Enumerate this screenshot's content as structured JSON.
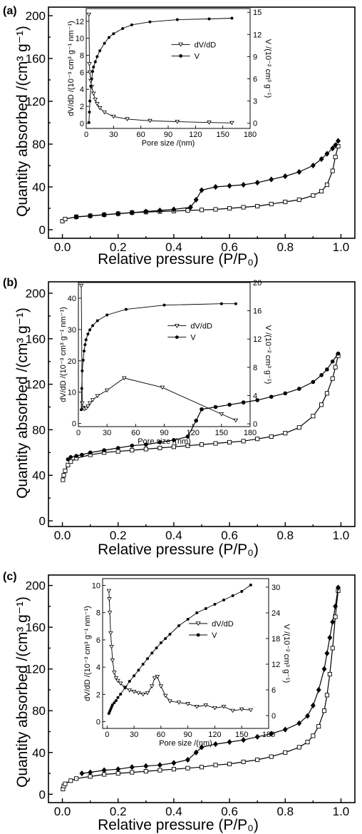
{
  "chart_data": [
    {
      "type": "line",
      "panel_label": "(a)",
      "xlabel": "Relative pressure (P/P₀)",
      "ylabel": "Quantity absorbed /(cm³ g⁻¹)",
      "xlim": [
        -0.05,
        1.05
      ],
      "ylim": [
        -8,
        208
      ],
      "xticks": [
        "0.0",
        "0.2",
        "0.4",
        "0.6",
        "0.8",
        "1.0"
      ],
      "yticks": [
        "0",
        "40",
        "80",
        "120",
        "160",
        "200"
      ],
      "series": [
        {
          "marker": "square-open",
          "x": [
            0.0,
            0.01,
            0.05,
            0.1,
            0.15,
            0.2,
            0.25,
            0.3,
            0.35,
            0.4,
            0.45,
            0.5,
            0.55,
            0.6,
            0.65,
            0.7,
            0.75,
            0.8,
            0.85,
            0.9,
            0.93,
            0.95,
            0.97,
            0.98,
            0.99
          ],
          "y": [
            8,
            10,
            12,
            13,
            14,
            15,
            16,
            16.5,
            17,
            17.5,
            18,
            18.5,
            19,
            20,
            21,
            22,
            24,
            26,
            28,
            32,
            36,
            42,
            55,
            68,
            78
          ]
        },
        {
          "marker": "diamond-filled",
          "x": [
            0.05,
            0.1,
            0.15,
            0.2,
            0.25,
            0.3,
            0.35,
            0.4,
            0.46,
            0.48,
            0.5,
            0.55,
            0.6,
            0.65,
            0.7,
            0.75,
            0.8,
            0.85,
            0.9,
            0.93,
            0.95,
            0.97,
            0.98,
            0.99
          ],
          "y": [
            12,
            13,
            14,
            15,
            16,
            17,
            18,
            19,
            21,
            28,
            37,
            40,
            41,
            42,
            44,
            47,
            50,
            54,
            60,
            66,
            71,
            76,
            79,
            83
          ]
        }
      ],
      "inset": {
        "xlabel": "Pore size /(nm)",
        "ylabel_left": "dV/dD /(10⁻³ cm³ g⁻¹ nm⁻¹)",
        "ylabel_right": "V /(10⁻² cm³ g⁻¹)",
        "xlim": [
          0,
          180
        ],
        "ylim_left": [
          -0.6,
          13.5
        ],
        "ylim_right": [
          -0.7,
          15.5
        ],
        "xticks": [
          "0",
          "30",
          "60",
          "90",
          "120",
          "150",
          "180"
        ],
        "yticks_left": [
          "0",
          "2",
          "4",
          "6",
          "8",
          "10",
          "12"
        ],
        "yticks_right": [
          "0",
          "3",
          "6",
          "9",
          "12",
          "15"
        ],
        "legend": [
          {
            "label": "dV/dD",
            "marker": "triangle-open"
          },
          {
            "label": "V",
            "marker": "circle-filled"
          }
        ],
        "dvdd": {
          "x": [
            3,
            3.5,
            4,
            5,
            6,
            8,
            10,
            12,
            15,
            20,
            30,
            45,
            70,
            100,
            135,
            160
          ],
          "y": [
            12.8,
            7,
            6,
            5,
            4.3,
            3.5,
            2.8,
            2.3,
            1.8,
            1.3,
            0.8,
            0.5,
            0.3,
            0.2,
            0.1,
            0.05
          ]
        },
        "volume": {
          "x": [
            3,
            3.5,
            4,
            5,
            6,
            7,
            8,
            10,
            12,
            15,
            20,
            25,
            30,
            40,
            50,
            70,
            100,
            135,
            160
          ],
          "y": [
            0.1,
            1.5,
            3,
            5,
            6,
            7,
            7.6,
            8.3,
            9,
            9.8,
            10.8,
            11.6,
            12.1,
            12.8,
            13.3,
            13.7,
            14,
            14.1,
            14.2
          ]
        }
      }
    },
    {
      "type": "line",
      "panel_label": "(b)",
      "xlabel": "Relative pressure (P/P₀)",
      "ylabel": "Quantity absorbed /(cm³ g⁻¹)",
      "xlim": [
        -0.05,
        1.05
      ],
      "ylim": [
        -5,
        210
      ],
      "xticks": [
        "0.0",
        "0.2",
        "0.4",
        "0.6",
        "0.8",
        "1.0"
      ],
      "yticks": [
        "0",
        "40",
        "80",
        "120",
        "160",
        "200"
      ],
      "series": [
        {
          "marker": "square-open",
          "x": [
            0.002,
            0.005,
            0.01,
            0.02,
            0.03,
            0.05,
            0.1,
            0.15,
            0.2,
            0.25,
            0.3,
            0.35,
            0.4,
            0.45,
            0.5,
            0.55,
            0.6,
            0.65,
            0.7,
            0.75,
            0.8,
            0.85,
            0.9,
            0.93,
            0.95,
            0.97,
            0.98,
            0.99
          ],
          "y": [
            36,
            40,
            44,
            49,
            52,
            55,
            58,
            60,
            61,
            62,
            63,
            64,
            65,
            66,
            67,
            68,
            69,
            70,
            72,
            74,
            77,
            82,
            92,
            102,
            112,
            125,
            135,
            145
          ]
        },
        {
          "marker": "circle-filled",
          "x": [
            0.02,
            0.03,
            0.05,
            0.07,
            0.1,
            0.15,
            0.2,
            0.25,
            0.3,
            0.35,
            0.4,
            0.45,
            0.48,
            0.5,
            0.55,
            0.6,
            0.65,
            0.7,
            0.75,
            0.8,
            0.85,
            0.9,
            0.93,
            0.95,
            0.97,
            0.99
          ],
          "y": [
            54,
            56,
            57,
            58,
            60,
            62,
            64,
            66,
            67,
            69,
            71,
            74,
            88,
            98,
            100,
            102,
            104,
            106,
            109,
            112,
            116,
            122,
            128,
            133,
            140,
            147
          ]
        }
      ],
      "inset": {
        "xlabel": "Pore size /(nm)",
        "ylabel_left": "dV/dD /(10⁻³ cm³ g⁻¹ nm⁻¹)",
        "ylabel_right": "V /(10⁻² cm³ g⁻¹)",
        "xlim": [
          0,
          180
        ],
        "ylim_left": [
          -1,
          45
        ],
        "ylim_right": [
          -0.4,
          20
        ],
        "xticks": [
          "0",
          "30",
          "60",
          "90",
          "120",
          "150",
          "180"
        ],
        "yticks_left": [
          "0",
          "10",
          "20",
          "30",
          "40"
        ],
        "yticks_right": [
          "0",
          "4",
          "8",
          "12",
          "16",
          "20"
        ],
        "legend": [
          {
            "label": "dV/dD",
            "marker": "triangle-open"
          },
          {
            "label": "V",
            "marker": "circle-filled"
          }
        ],
        "dvdd": {
          "x": [
            3,
            4,
            5,
            6,
            8,
            10,
            12,
            15,
            20,
            30,
            48,
            88,
            150,
            165
          ],
          "y": [
            44,
            6.5,
            5,
            4.6,
            4.8,
            5.5,
            6.5,
            7.5,
            8.8,
            10.6,
            14.5,
            11.5,
            3,
            1
          ]
        },
        "volume": {
          "x": [
            3,
            3.5,
            4,
            5,
            6,
            7,
            8,
            10,
            12,
            15,
            20,
            30,
            50,
            90,
            150,
            165
          ],
          "y": [
            2,
            5,
            7.5,
            9,
            10.3,
            11.2,
            11.9,
            12.7,
            13.3,
            13.9,
            14.6,
            15.4,
            16.2,
            16.8,
            17,
            17
          ]
        }
      }
    },
    {
      "type": "line",
      "panel_label": "(c)",
      "xlabel": "Relative pressure (P/P₀)",
      "ylabel": "Quantity absorbed /(cm³ g⁻¹)",
      "xlim": [
        -0.05,
        1.05
      ],
      "ylim": [
        -8,
        210
      ],
      "xticks": [
        "0.0",
        "0.2",
        "0.4",
        "0.6",
        "0.8",
        "1.0"
      ],
      "yticks": [
        "0",
        "40",
        "80",
        "120",
        "160",
        "200"
      ],
      "series": [
        {
          "marker": "square-open",
          "x": [
            0.002,
            0.005,
            0.01,
            0.03,
            0.05,
            0.1,
            0.15,
            0.2,
            0.25,
            0.3,
            0.35,
            0.4,
            0.45,
            0.5,
            0.55,
            0.6,
            0.65,
            0.7,
            0.75,
            0.8,
            0.85,
            0.88,
            0.9,
            0.92,
            0.94,
            0.95,
            0.96,
            0.97,
            0.98,
            0.99
          ],
          "y": [
            5,
            8,
            10,
            13,
            15,
            17,
            19,
            20,
            21,
            22,
            23,
            24,
            25,
            26,
            28,
            29,
            31,
            33,
            36,
            40,
            45,
            50,
            56,
            65,
            80,
            95,
            115,
            140,
            170,
            195
          ]
        },
        {
          "marker": "diamond-filled",
          "x": [
            0.07,
            0.1,
            0.15,
            0.2,
            0.25,
            0.3,
            0.35,
            0.4,
            0.45,
            0.48,
            0.5,
            0.55,
            0.6,
            0.65,
            0.7,
            0.75,
            0.8,
            0.85,
            0.88,
            0.9,
            0.92,
            0.94,
            0.95,
            0.96,
            0.97,
            0.98,
            0.99
          ],
          "y": [
            20,
            21,
            23,
            24,
            26,
            27,
            28,
            30,
            33,
            40,
            45,
            48,
            50,
            52,
            55,
            58,
            62,
            68,
            75,
            85,
            100,
            120,
            135,
            150,
            165,
            180,
            198
          ]
        }
      ],
      "inset": {
        "xlabel": "Pore size /(nm)",
        "ylabel_left": "dV/dD /(10⁻³ cm³ g⁻¹ nm⁻¹)",
        "ylabel_right": "V /(10⁻² cm³ g⁻¹)",
        "xlim": [
          -5,
          180
        ],
        "ylim_left": [
          -0.5,
          10.5
        ],
        "ylim_right": [
          -3,
          32
        ],
        "xticks": [
          "0",
          "30",
          "60",
          "90",
          "120",
          "150",
          "180"
        ],
        "yticks_left": [
          "0",
          "2",
          "4",
          "6",
          "8",
          "10"
        ],
        "yticks_right": [
          "0",
          "6",
          "12",
          "18",
          "24",
          "30"
        ],
        "legend": [
          {
            "label": "dV/dD",
            "marker": "triangle-open"
          },
          {
            "label": "V",
            "marker": "circle-filled"
          }
        ],
        "dvdd": {
          "x": [
            2,
            2.5,
            3,
            4,
            5,
            6,
            8,
            10,
            12,
            15,
            20,
            25,
            30,
            35,
            40,
            45,
            50,
            53,
            56,
            60,
            65,
            70,
            80,
            90,
            100,
            110,
            120,
            130,
            140,
            150,
            160
          ],
          "y": [
            9.6,
            9,
            8,
            6.5,
            5.5,
            4.5,
            3.6,
            3.2,
            3,
            2.8,
            2.5,
            2.3,
            2.2,
            2.1,
            2,
            2.1,
            2.6,
            3.2,
            3.3,
            2.6,
            1.9,
            1.5,
            1.4,
            1.3,
            1.1,
            1.2,
            1.0,
            1.1,
            0.8,
            0.9,
            0.85
          ]
        },
        "volume": {
          "x": [
            2,
            3,
            4,
            5,
            6,
            8,
            10,
            12,
            15,
            20,
            25,
            30,
            35,
            40,
            45,
            50,
            55,
            60,
            65,
            70,
            80,
            90,
            100,
            110,
            120,
            130,
            140,
            150,
            160
          ],
          "y": [
            0.5,
            1,
            1.5,
            2,
            2.5,
            3,
            3.5,
            4.2,
            5,
            6.5,
            8,
            9.3,
            10.6,
            12,
            13.3,
            14.6,
            15.8,
            17,
            18,
            19,
            21,
            22.5,
            24,
            25,
            26,
            27,
            28,
            29,
            30.5
          ]
        }
      }
    }
  ]
}
